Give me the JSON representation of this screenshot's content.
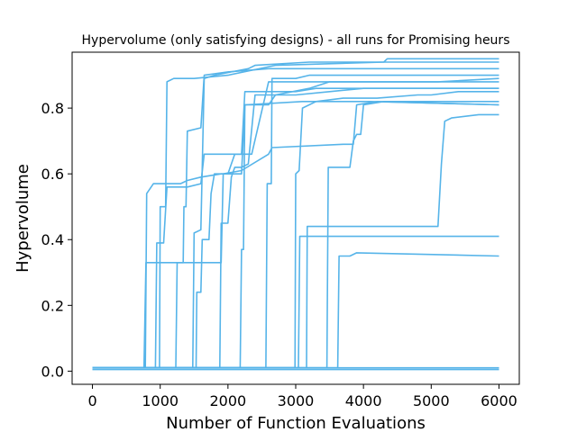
{
  "chart_data": {
    "type": "line",
    "title": "Hypervolume (only satisfying designs) - all runs for Promising heurs",
    "xlabel": "Number of Function Evaluations",
    "ylabel": "Hypervolume",
    "xlim": [
      -300,
      6300
    ],
    "ylim": [
      -0.04,
      0.97
    ],
    "xticks": [
      0,
      1000,
      2000,
      3000,
      4000,
      5000,
      6000
    ],
    "xtick_labels": [
      "0",
      "1000",
      "2000",
      "3000",
      "4000",
      "5000",
      "6000"
    ],
    "yticks": [
      0.0,
      0.2,
      0.4,
      0.6,
      0.8
    ],
    "ytick_labels": [
      "0.0",
      "0.2",
      "0.4",
      "0.6",
      "0.8"
    ],
    "grid": false,
    "line_color": "#56B4E9",
    "series": [
      {
        "points": [
          [
            0,
            0.01
          ],
          [
            760,
            0.01
          ],
          [
            790,
            0.33
          ],
          [
            1900,
            0.33
          ],
          [
            1930,
            0.6
          ],
          [
            2200,
            0.61
          ],
          [
            2600,
            0.66
          ],
          [
            2650,
            0.68
          ],
          [
            3700,
            0.69
          ],
          [
            3850,
            0.69
          ],
          [
            3900,
            0.81
          ],
          [
            4200,
            0.82
          ],
          [
            6000,
            0.81
          ]
        ]
      },
      {
        "points": [
          [
            0,
            0.01
          ],
          [
            780,
            0.01
          ],
          [
            800,
            0.54
          ],
          [
            900,
            0.57
          ],
          [
            1300,
            0.57
          ],
          [
            1400,
            0.58
          ],
          [
            1600,
            0.59
          ],
          [
            1900,
            0.6
          ],
          [
            2000,
            0.6
          ],
          [
            2100,
            0.66
          ],
          [
            2300,
            0.66
          ],
          [
            2350,
            0.66
          ],
          [
            2600,
            0.88
          ],
          [
            4000,
            0.88
          ],
          [
            6000,
            0.88
          ]
        ]
      },
      {
        "points": [
          [
            0,
            0.01
          ],
          [
            930,
            0.01
          ],
          [
            950,
            0.39
          ],
          [
            1050,
            0.39
          ],
          [
            1100,
            0.56
          ],
          [
            1400,
            0.56
          ],
          [
            1600,
            0.57
          ],
          [
            1650,
            0.66
          ],
          [
            2200,
            0.66
          ],
          [
            2250,
            0.85
          ],
          [
            3000,
            0.85
          ],
          [
            3300,
            0.86
          ],
          [
            6000,
            0.86
          ]
        ]
      },
      {
        "points": [
          [
            0,
            0.01
          ],
          [
            990,
            0.01
          ],
          [
            1000,
            0.5
          ],
          [
            1080,
            0.5
          ],
          [
            1100,
            0.88
          ],
          [
            1200,
            0.89
          ],
          [
            1500,
            0.89
          ],
          [
            2000,
            0.9
          ],
          [
            2700,
            0.93
          ],
          [
            4300,
            0.94
          ],
          [
            4350,
            0.95
          ],
          [
            6000,
            0.95
          ]
        ]
      },
      {
        "points": [
          [
            0,
            0.01
          ],
          [
            1230,
            0.01
          ],
          [
            1250,
            0.33
          ],
          [
            1340,
            0.33
          ],
          [
            1350,
            0.5
          ],
          [
            1380,
            0.5
          ],
          [
            1400,
            0.73
          ],
          [
            1600,
            0.74
          ],
          [
            1650,
            0.9
          ],
          [
            2000,
            0.91
          ],
          [
            2600,
            0.92
          ],
          [
            6000,
            0.92
          ]
        ]
      },
      {
        "points": [
          [
            0,
            0.01
          ],
          [
            1480,
            0.01
          ],
          [
            1500,
            0.42
          ],
          [
            1600,
            0.43
          ],
          [
            1650,
            0.89
          ],
          [
            1800,
            0.9
          ],
          [
            2050,
            0.91
          ],
          [
            2300,
            0.92
          ],
          [
            2400,
            0.93
          ],
          [
            3200,
            0.94
          ],
          [
            6000,
            0.94
          ]
        ]
      },
      {
        "points": [
          [
            0,
            0.01
          ],
          [
            1530,
            0.01
          ],
          [
            1540,
            0.24
          ],
          [
            1600,
            0.24
          ],
          [
            1620,
            0.4
          ],
          [
            1720,
            0.4
          ],
          [
            1750,
            0.54
          ],
          [
            1800,
            0.6
          ],
          [
            2200,
            0.6
          ],
          [
            2250,
            0.81
          ],
          [
            3100,
            0.82
          ],
          [
            4100,
            0.82
          ],
          [
            6000,
            0.81
          ]
        ]
      },
      {
        "points": [
          [
            0,
            0.01
          ],
          [
            1880,
            0.01
          ],
          [
            1900,
            0.45
          ],
          [
            2000,
            0.45
          ],
          [
            2050,
            0.59
          ],
          [
            2100,
            0.62
          ],
          [
            2200,
            0.62
          ],
          [
            2300,
            0.63
          ],
          [
            2400,
            0.84
          ],
          [
            3000,
            0.84
          ],
          [
            3500,
            0.85
          ],
          [
            4000,
            0.86
          ],
          [
            6000,
            0.86
          ]
        ]
      },
      {
        "points": [
          [
            0,
            0.01
          ],
          [
            2180,
            0.01
          ],
          [
            2200,
            0.37
          ],
          [
            2230,
            0.37
          ],
          [
            2250,
            0.81
          ],
          [
            2600,
            0.81
          ],
          [
            2700,
            0.84
          ],
          [
            3200,
            0.86
          ],
          [
            3500,
            0.88
          ],
          [
            4000,
            0.88
          ],
          [
            4500,
            0.88
          ],
          [
            4800,
            0.88
          ],
          [
            5100,
            0.88
          ],
          [
            6000,
            0.89
          ]
        ]
      },
      {
        "points": [
          [
            0,
            0.01
          ],
          [
            2560,
            0.01
          ],
          [
            2580,
            0.57
          ],
          [
            2640,
            0.57
          ],
          [
            2650,
            0.89
          ],
          [
            2800,
            0.89
          ],
          [
            3000,
            0.89
          ],
          [
            3200,
            0.9
          ],
          [
            6000,
            0.9
          ]
        ]
      },
      {
        "points": [
          [
            0,
            0.01
          ],
          [
            2990,
            0.01
          ],
          [
            3000,
            0.6
          ],
          [
            3050,
            0.61
          ],
          [
            3100,
            0.8
          ],
          [
            3300,
            0.82
          ],
          [
            3700,
            0.83
          ],
          [
            4200,
            0.83
          ],
          [
            4800,
            0.84
          ],
          [
            5000,
            0.84
          ],
          [
            5400,
            0.85
          ],
          [
            6000,
            0.85
          ]
        ]
      },
      {
        "points": [
          [
            0,
            0.01
          ],
          [
            3040,
            0.01
          ],
          [
            3060,
            0.41
          ],
          [
            3100,
            0.41
          ],
          [
            3800,
            0.41
          ],
          [
            3850,
            0.41
          ],
          [
            3880,
            0.41
          ],
          [
            6000,
            0.41
          ]
        ]
      },
      {
        "points": [
          [
            0,
            0.01
          ],
          [
            3160,
            0.01
          ],
          [
            3170,
            0.44
          ],
          [
            5100,
            0.44
          ],
          [
            5150,
            0.63
          ],
          [
            5200,
            0.76
          ],
          [
            5300,
            0.77
          ],
          [
            5700,
            0.78
          ],
          [
            6000,
            0.78
          ]
        ]
      },
      {
        "points": [
          [
            0,
            0.01
          ],
          [
            3460,
            0.01
          ],
          [
            3480,
            0.62
          ],
          [
            3800,
            0.62
          ],
          [
            3850,
            0.7
          ],
          [
            3900,
            0.72
          ],
          [
            3960,
            0.72
          ],
          [
            4000,
            0.81
          ],
          [
            4300,
            0.82
          ],
          [
            6000,
            0.82
          ]
        ]
      },
      {
        "points": [
          [
            0,
            0.01
          ],
          [
            3620,
            0.01
          ],
          [
            3640,
            0.35
          ],
          [
            3800,
            0.35
          ],
          [
            3900,
            0.36
          ],
          [
            6000,
            0.35
          ]
        ]
      },
      {
        "points": [
          [
            0,
            0.01
          ],
          [
            6000,
            0.01
          ]
        ]
      },
      {
        "points": [
          [
            0,
            0.005
          ],
          [
            6000,
            0.005
          ]
        ]
      }
    ]
  }
}
